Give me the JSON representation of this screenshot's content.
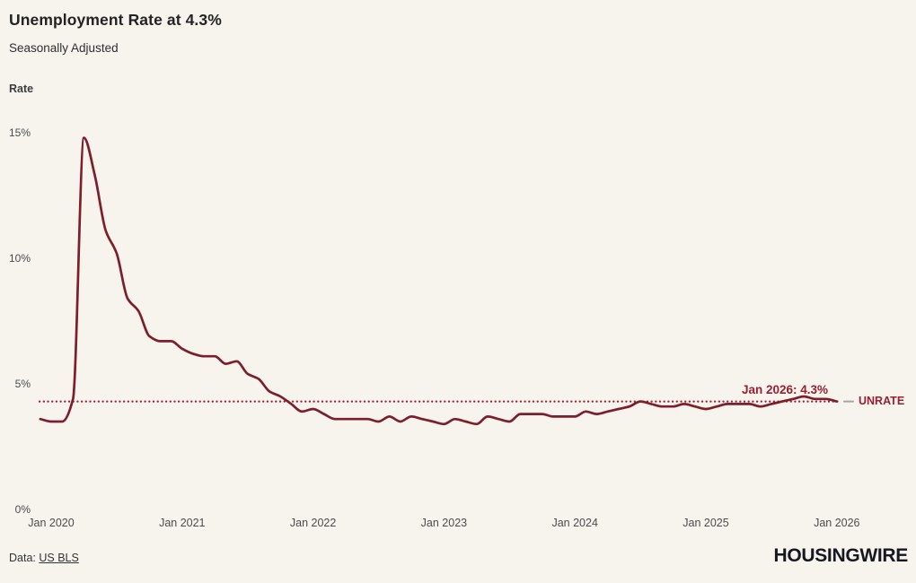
{
  "header": {
    "title": "Unemployment Rate at 4.3%",
    "subtitle": "Seasonally Adjusted"
  },
  "chart": {
    "y_axis_title": "Rate",
    "annotation": "Jan 2026: 4.3%",
    "series_label": "UNRATE"
  },
  "footer": {
    "source_prefix": "Data: ",
    "source_link": "US BLS",
    "brand": "HOUSINGWIRE"
  },
  "colors": {
    "background": "#f7f4ee",
    "line": "#7e1d2c",
    "reference_dotted": "#a02336",
    "label_red": "#9c1e30",
    "leader_dash": "#a9a49b",
    "axis_text": "#4b4b4b",
    "title_text": "#232323",
    "logo": "#17171f"
  },
  "chart_data": {
    "type": "line",
    "title": "Unemployment Rate at 4.3%",
    "subtitle": "Seasonally Adjusted",
    "ylabel": "Rate",
    "series_name": "UNRATE",
    "frequency": "monthly",
    "x_start": "Dec 2019",
    "x_end": "Jan 2026",
    "values": [
      3.6,
      3.5,
      3.5,
      4.4,
      14.8,
      13.3,
      11.1,
      10.2,
      8.4,
      7.9,
      6.9,
      6.7,
      6.7,
      6.4,
      6.2,
      6.1,
      6.1,
      5.8,
      5.9,
      5.4,
      5.2,
      4.7,
      4.5,
      4.2,
      3.9,
      4.0,
      3.8,
      3.6,
      3.6,
      3.6,
      3.6,
      3.5,
      3.7,
      3.5,
      3.7,
      3.6,
      3.5,
      3.4,
      3.6,
      3.5,
      3.4,
      3.7,
      3.6,
      3.5,
      3.8,
      3.8,
      3.8,
      3.7,
      3.7,
      3.7,
      3.9,
      3.8,
      3.9,
      4.0,
      4.1,
      4.3,
      4.2,
      4.1,
      4.1,
      4.2,
      4.1,
      4.0,
      4.1,
      4.2,
      4.2,
      4.2,
      4.1,
      4.2,
      4.3,
      4.4,
      4.5,
      4.4,
      4.4,
      4.3
    ],
    "x_tick_labels": [
      "Jan 2020",
      "Jan 2021",
      "Jan 2022",
      "Jan 2023",
      "Jan 2024",
      "Jan 2025",
      "Jan 2026"
    ],
    "x_tick_indices": [
      1,
      13,
      25,
      37,
      49,
      61,
      73
    ],
    "y_tick_values": [
      0,
      5,
      10,
      15
    ],
    "y_tick_labels": [
      "0%",
      "5%",
      "10%",
      "15%"
    ],
    "ylim": [
      0,
      16
    ],
    "grid": false,
    "legend_position": "line-end",
    "reference_line": {
      "value": 4.3,
      "style": "dotted",
      "label": "Jan 2026: 4.3%"
    }
  }
}
